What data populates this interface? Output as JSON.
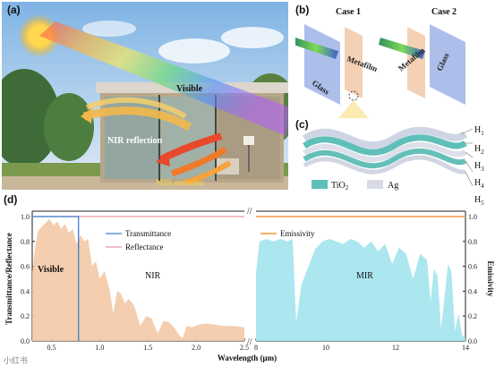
{
  "panel_a": {
    "label": "(a)",
    "visible_text": "Visible",
    "nir_text": "NIR reflection",
    "mir_text": "MIR emission"
  },
  "panel_b": {
    "label": "(b)",
    "case1": "Case 1",
    "case2": "Case 2",
    "glass": "Glass",
    "metafilm": "Metafilm"
  },
  "panel_c": {
    "label": "(c)",
    "layers": [
      "H1",
      "H2",
      "H3",
      "H4",
      "H5"
    ],
    "legend_tio2": "TiO",
    "legend_tio2_sub": "2",
    "legend_ag": "Ag",
    "colors": {
      "tio2": "#5fbfb9",
      "ag": "#d8dbe6"
    }
  },
  "panel_d": {
    "label": "(d)",
    "watermark": "小红书",
    "chart_data": {
      "type": "area",
      "xlabel": "Wavelength (μm)",
      "ylabel_left": "Transmittance/Reflectance",
      "ylabel_right": "Emissivity",
      "ylim": [
        0,
        1.0
      ],
      "yticks": [
        "0.0",
        "0.2",
        "0.4",
        "0.6",
        "0.8",
        "1.0"
      ],
      "left_axis": {
        "xlim": [
          0.3,
          2.5
        ],
        "xticks": [
          "0.5",
          "1.0",
          "1.5",
          "2.0",
          "2.5"
        ],
        "region_labels": [
          "Visible",
          "NIR"
        ],
        "legend": [
          "Transmittance",
          "Reflectance"
        ],
        "series": [
          {
            "name": "Transmittance",
            "color": "#3a7fd5",
            "x": [
              0.3,
              0.78,
              0.78
            ],
            "y": [
              1.0,
              1.0,
              0.0
            ]
          },
          {
            "name": "Reflectance",
            "color": "#f3c9a5",
            "x": [
              0.3,
              0.33,
              0.36,
              0.4,
              0.44,
              0.48,
              0.52,
              0.56,
              0.6,
              0.64,
              0.68,
              0.72,
              0.76,
              0.8,
              0.84,
              0.88,
              0.92,
              0.96,
              1.0,
              1.05,
              1.1,
              1.14,
              1.18,
              1.22,
              1.26,
              1.3,
              1.36,
              1.42,
              1.48,
              1.54,
              1.6,
              1.66,
              1.72,
              1.78,
              1.82,
              1.86,
              1.9,
              1.96,
              2.02,
              2.1,
              2.2,
              2.3,
              2.4,
              2.5
            ],
            "y": [
              0.55,
              0.75,
              0.88,
              0.92,
              0.95,
              0.98,
              0.93,
              0.96,
              0.9,
              0.94,
              0.87,
              0.9,
              0.78,
              0.85,
              0.8,
              0.82,
              0.6,
              0.64,
              0.5,
              0.56,
              0.42,
              0.22,
              0.4,
              0.38,
              0.3,
              0.34,
              0.28,
              0.12,
              0.2,
              0.18,
              0.06,
              0.16,
              0.15,
              0.1,
              0.05,
              0.02,
              0.12,
              0.11,
              0.13,
              0.14,
              0.13,
              0.12,
              0.12,
              0.11
            ]
          },
          {
            "name": "Reflectance line",
            "color": "#e89aa2",
            "x": [
              0.3,
              2.5
            ],
            "y": [
              1.0,
              1.0
            ]
          }
        ]
      },
      "right_axis": {
        "xlim": [
          8,
          14
        ],
        "xticks": [
          "8",
          "10",
          "12",
          "14"
        ],
        "yticks": [
          "0.0",
          "0.2",
          "0.4",
          "0.6",
          "0.8",
          "1.0"
        ],
        "region_labels": [
          "MIR"
        ],
        "legend": [
          "Emissivity"
        ],
        "series": [
          {
            "name": "Emissivity",
            "color": "#f39a3a",
            "x": [
              8,
              14
            ],
            "y": [
              1.0,
              1.0
            ]
          },
          {
            "name": "Transmittance",
            "color": "#a8e6ef",
            "x": [
              8.0,
              8.1,
              8.3,
              8.5,
              8.7,
              8.9,
              9.05,
              9.15,
              9.3,
              9.5,
              9.7,
              9.9,
              10.1,
              10.3,
              10.5,
              10.7,
              10.9,
              11.1,
              11.3,
              11.5,
              11.7,
              11.9,
              12.1,
              12.3,
              12.5,
              12.7,
              12.9,
              13.0,
              13.1,
              13.2,
              13.3,
              13.4,
              13.5,
              13.6,
              13.7,
              13.8,
              13.9,
              14.0
            ],
            "y": [
              0.55,
              0.8,
              0.82,
              0.8,
              0.82,
              0.8,
              0.82,
              0.15,
              0.45,
              0.6,
              0.74,
              0.8,
              0.82,
              0.8,
              0.78,
              0.82,
              0.8,
              0.75,
              0.8,
              0.72,
              0.78,
              0.62,
              0.75,
              0.7,
              0.5,
              0.7,
              0.65,
              0.32,
              0.58,
              0.52,
              0.1,
              0.35,
              0.62,
              0.55,
              0.08,
              0.22,
              0.05,
              0.02
            ]
          }
        ]
      }
    }
  }
}
